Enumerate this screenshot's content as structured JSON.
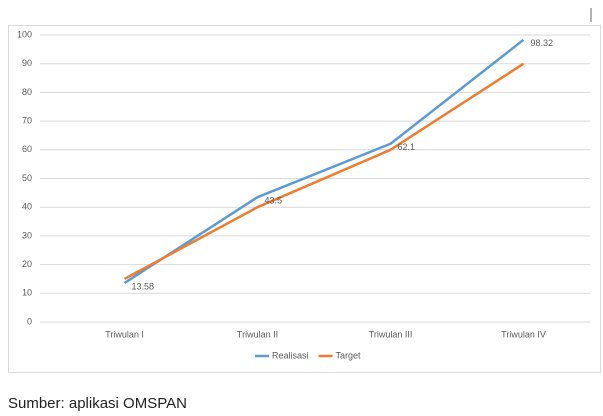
{
  "chart_data": {
    "type": "line",
    "categories": [
      "Triwulan I",
      "Triwulan II",
      "Triwulan III",
      "Triwulan IV"
    ],
    "series": [
      {
        "name": "Realisasi",
        "color": "#5b9bd5",
        "values": [
          13.58,
          43.5,
          62.1,
          98.32
        ],
        "data_labels": true
      },
      {
        "name": "Target",
        "color": "#ed7d31",
        "values": [
          15,
          40,
          60,
          90
        ],
        "data_labels": false
      }
    ],
    "ylim": [
      0,
      100
    ],
    "yticks": [
      0,
      10,
      20,
      30,
      40,
      50,
      60,
      70,
      80,
      90,
      100
    ],
    "grid": true,
    "legend": "bottom"
  },
  "source": "Sumber: aplikasi OMSPAN"
}
